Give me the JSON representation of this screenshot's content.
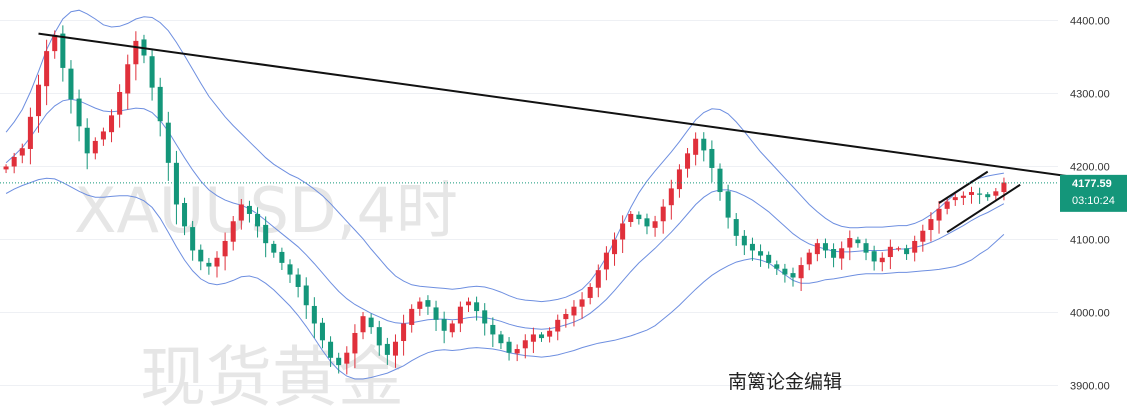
{
  "watermark": {
    "symbol": "XAUUSD,4时",
    "name": "现货黄金"
  },
  "author_label": "南篱论金编辑",
  "current": {
    "price_label": "4177.59",
    "countdown_label": "03:10:24"
  },
  "colors": {
    "up": "#e0303b",
    "down": "#14967a",
    "band": "#6e8fe0",
    "trendline": "#111111",
    "grid": "#eef0f4"
  },
  "chart_data": {
    "type": "candlestick",
    "title": "",
    "xlabel": "",
    "ylabel": "",
    "ylim": [
      3872,
      4428
    ],
    "y_ticks": [
      3900,
      4000,
      4100,
      4200,
      4300,
      4400
    ],
    "y_tick_labels": [
      "3900.00",
      "4000.00",
      "4100.00",
      "4200.00",
      "4300.00",
      "4400.00"
    ],
    "last_price": 4177.59,
    "close_series": [
      4200,
      4213,
      4225,
      4268,
      4312,
      4358,
      4380,
      4335,
      4292,
      4255,
      4218,
      4235,
      4248,
      4270,
      4302,
      4340,
      4372,
      4352,
      4308,
      4262,
      4205,
      4148,
      4118,
      4085,
      4070,
      4063,
      4075,
      4098,
      4125,
      4148,
      4135,
      4118,
      4095,
      4082,
      4068,
      4052,
      4035,
      4010,
      3985,
      3962,
      3938,
      3928,
      3945,
      3972,
      3995,
      3980,
      3955,
      3942,
      3960,
      3985,
      4005,
      4015,
      4008,
      3990,
      3975,
      3985,
      4008,
      4015,
      4002,
      3985,
      3970,
      3958,
      3945,
      3950,
      3962,
      3970,
      3965,
      3975,
      3990,
      3998,
      4008,
      4018,
      4035,
      4058,
      4082,
      4100,
      4122,
      4135,
      4128,
      4118,
      4125,
      4145,
      4170,
      4196,
      4218,
      4238,
      4222,
      4198,
      4165,
      4130,
      4105,
      4092,
      4085,
      4078,
      4068,
      4060,
      4052,
      4048,
      4065,
      4082,
      4095,
      4085,
      4075,
      4088,
      4102,
      4095,
      4082,
      4070,
      4075,
      4090,
      4088,
      4080,
      4098,
      4112,
      4128,
      4142,
      4152,
      4158,
      4160,
      4165,
      4162,
      4158,
      4166,
      4178
    ],
    "band_middle": [
      4205,
      4215,
      4226,
      4240,
      4256,
      4272,
      4283,
      4290,
      4292,
      4290,
      4285,
      4280,
      4276,
      4275,
      4276,
      4278,
      4280,
      4279,
      4274,
      4263,
      4248,
      4230,
      4212,
      4195,
      4180,
      4168,
      4160,
      4154,
      4150,
      4147,
      4142,
      4135,
      4126,
      4117,
      4108,
      4099,
      4090,
      4079,
      4067,
      4054,
      4041,
      4029,
      4019,
      4011,
      4005,
      3999,
      3994,
      3989,
      3986,
      3985,
      3986,
      3988,
      3990,
      3991,
      3991,
      3990,
      3991,
      3993,
      3994,
      3993,
      3991,
      3988,
      3984,
      3981,
      3979,
      3978,
      3977,
      3978,
      3980,
      3983,
      3987,
      3992,
      3999,
      4008,
      4018,
      4030,
      4043,
      4056,
      4068,
      4078,
      4088,
      4099,
      4110,
      4122,
      4135,
      4148,
      4158,
      4165,
      4168,
      4168,
      4165,
      4160,
      4154,
      4146,
      4138,
      4128,
      4118,
      4108,
      4100,
      4094,
      4090,
      4087,
      4084,
      4083,
      4083,
      4084,
      4085,
      4085,
      4085,
      4086,
      4087,
      4087,
      4089,
      4092,
      4096,
      4101,
      4107,
      4113,
      4119,
      4126,
      4132,
      4137,
      4143,
      4149
    ],
    "band_width": [
      42,
      46,
      52,
      62,
      74,
      88,
      100,
      112,
      120,
      124,
      124,
      122,
      118,
      116,
      116,
      118,
      122,
      126,
      130,
      134,
      138,
      140,
      140,
      138,
      134,
      128,
      122,
      114,
      106,
      98,
      92,
      88,
      86,
      86,
      88,
      90,
      94,
      98,
      102,
      106,
      108,
      108,
      106,
      102,
      96,
      88,
      80,
      72,
      64,
      58,
      52,
      48,
      45,
      43,
      42,
      42,
      42,
      42,
      42,
      42,
      41,
      40,
      39,
      38,
      38,
      38,
      38,
      38,
      38,
      38,
      39,
      40,
      44,
      50,
      58,
      68,
      78,
      88,
      96,
      102,
      106,
      108,
      110,
      112,
      114,
      116,
      116,
      114,
      110,
      104,
      96,
      88,
      80,
      74,
      70,
      68,
      66,
      64,
      60,
      54,
      48,
      42,
      38,
      35,
      33,
      32,
      32,
      32,
      32,
      32,
      32,
      32,
      33,
      35,
      38,
      42,
      46,
      50,
      52,
      54,
      52,
      50,
      46,
      42
    ],
    "trendlines": [
      {
        "from": [
          4,
          4382
        ],
        "to": [
          145,
          4165
        ]
      },
      {
        "from": [
          115,
          4150
        ],
        "to": [
          121,
          4193
        ]
      },
      {
        "from": [
          116,
          4110
        ],
        "to": [
          125,
          4175
        ]
      }
    ]
  }
}
